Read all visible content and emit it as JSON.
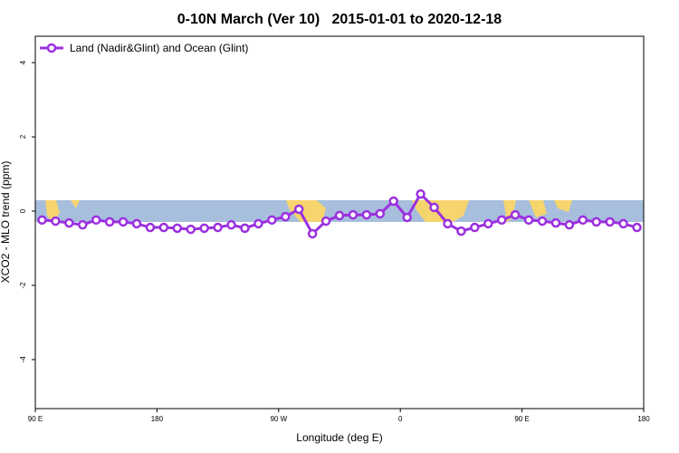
{
  "chart_data": {
    "type": "line",
    "title": "0-10N March (Ver 10)   2015-01-01 to 2020-12-18",
    "x_label": "Longitude (deg E)",
    "y_label": "XCO2 - MLO trend (ppm)",
    "x": [
      95,
      105,
      115,
      125,
      135,
      145,
      155,
      165,
      175,
      185,
      195,
      205,
      215,
      225,
      235,
      245,
      255,
      265,
      275,
      285,
      295,
      305,
      315,
      325,
      335,
      345,
      355,
      365,
      375,
      385,
      395,
      405,
      415,
      425,
      435,
      445,
      455,
      465,
      475,
      485,
      495,
      505,
      515,
      525,
      535
    ],
    "series": [
      {
        "name": "Land (Nadir&Glint) and Ocean (Glint)",
        "color": "#9b30e0",
        "values": [
          -0.24,
          -0.27,
          -0.32,
          -0.37,
          -0.24,
          -0.29,
          -0.29,
          -0.34,
          -0.44,
          -0.44,
          -0.46,
          -0.49,
          -0.46,
          -0.44,
          -0.37,
          -0.46,
          -0.34,
          -0.24,
          -0.15,
          0.05,
          -0.61,
          -0.27,
          -0.12,
          -0.1,
          -0.1,
          -0.07,
          0.27,
          -0.17,
          0.46,
          0.1,
          -0.34,
          -0.54,
          -0.44,
          -0.34,
          -0.24,
          -0.1,
          -0.24,
          -0.27,
          -0.32,
          -0.37,
          -0.24,
          -0.29,
          -0.29,
          -0.34,
          -0.44
        ]
      }
    ],
    "xlim": [
      90,
      540
    ],
    "xticks": [
      {
        "value": 90,
        "label": "90 E"
      },
      180,
      {
        "value": 270,
        "label": "90 W"
      },
      {
        "value": 360,
        "label": "0"
      },
      {
        "value": 450,
        "label": "90 E"
      },
      {
        "value": 540,
        "label": "180"
      }
    ],
    "ylim": [
      -5.32,
      4.71
    ],
    "yticks": [
      -4,
      -2,
      0,
      2,
      4
    ],
    "legend_position": "top-left"
  }
}
